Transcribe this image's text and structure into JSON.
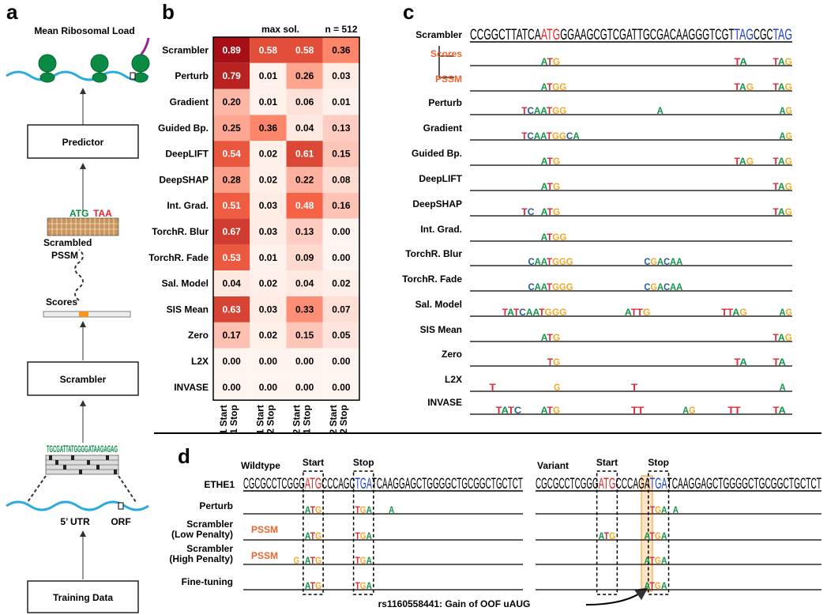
{
  "panel_a": {
    "label": "a",
    "title": "Mean Ribosomal Load",
    "predictor": "Predictor",
    "scrambled_pssm": [
      "Scrambled",
      "PSSM"
    ],
    "scores": "Scores",
    "scrambler": "Scrambler",
    "sequence": "TGCGATTATGGGGATAAGAGAG",
    "utr": "5’ UTR",
    "orf": "ORF",
    "training_data": "Training Data"
  },
  "panel_b": {
    "label": "b",
    "header_left": "max sol.",
    "header_right": "n = 512",
    "columns": [
      [
        "1 Start",
        "1 Stop"
      ],
      [
        "1 Start",
        "2 Stop"
      ],
      [
        "2 Start",
        "1 Stop"
      ],
      [
        "2 Start",
        "2 Stop"
      ]
    ],
    "rows": [
      {
        "name": "Scrambler",
        "values": [
          "0.89",
          "0.58",
          "0.58",
          "0.36"
        ]
      },
      {
        "name": "Perturb",
        "values": [
          "0.79",
          "0.01",
          "0.26",
          "0.03"
        ]
      },
      {
        "name": "Gradient",
        "values": [
          "0.20",
          "0.01",
          "0.06",
          "0.01"
        ]
      },
      {
        "name": "Guided Bp.",
        "values": [
          "0.25",
          "0.36",
          "0.04",
          "0.13"
        ]
      },
      {
        "name": "DeepLIFT",
        "values": [
          "0.54",
          "0.02",
          "0.61",
          "0.15"
        ]
      },
      {
        "name": "DeepSHAP",
        "values": [
          "0.28",
          "0.02",
          "0.22",
          "0.08"
        ]
      },
      {
        "name": "Int. Grad.",
        "values": [
          "0.51",
          "0.03",
          "0.48",
          "0.16"
        ]
      },
      {
        "name": "TorchR. Blur",
        "values": [
          "0.67",
          "0.03",
          "0.13",
          "0.00"
        ]
      },
      {
        "name": "TorchR. Fade",
        "values": [
          "0.53",
          "0.01",
          "0.09",
          "0.00"
        ]
      },
      {
        "name": "Sal. Model",
        "values": [
          "0.04",
          "0.02",
          "0.04",
          "0.02"
        ]
      },
      {
        "name": "SIS Mean",
        "values": [
          "0.63",
          "0.03",
          "0.33",
          "0.07"
        ]
      },
      {
        "name": "Zero",
        "values": [
          "0.17",
          "0.02",
          "0.15",
          "0.05"
        ]
      },
      {
        "name": "L2X",
        "values": [
          "0.00",
          "0.00",
          "0.00",
          "0.00"
        ]
      },
      {
        "name": "INVASE",
        "values": [
          "0.00",
          "0.00",
          "0.00",
          "0.00"
        ]
      }
    ]
  },
  "panel_c": {
    "label": "c",
    "sequence": [
      {
        "text": "CCGGCTTATCA",
        "color": "#000000"
      },
      {
        "text": "ATG",
        "color": "#e8262a"
      },
      {
        "text": "GGAAGCGTCGATTGCGACAAGGGTCGT",
        "color": "#000000"
      },
      {
        "text": "TAG",
        "color": "#1f3fd1"
      },
      {
        "text": "CGC",
        "color": "#000000"
      },
      {
        "text": "TAG",
        "color": "#1f3fd1"
      }
    ],
    "rows": [
      {
        "name": "Scrambler",
        "logo": []
      },
      {
        "name": "Scores",
        "color": "#f0642d",
        "logo": [
          {
            "text": "ATG",
            "start": 11
          },
          {
            "text": "TA",
            "start": 41
          },
          {
            "text": "TAG",
            "start": 47
          }
        ]
      },
      {
        "name": "PSSM",
        "color": "#f0642d",
        "logo": [
          {
            "text": "ATGG",
            "start": 11
          },
          {
            "text": "TAG",
            "start": 41
          },
          {
            "text": "TAG",
            "start": 47
          }
        ]
      },
      {
        "name": "Perturb",
        "logo": [
          {
            "text": "TCAATGG",
            "start": 8
          },
          {
            "text": "A",
            "start": 29
          },
          {
            "text": "AG",
            "start": 48
          }
        ]
      },
      {
        "name": "Gradient",
        "logo": [
          {
            "text": "TCAATGGCA",
            "start": 8
          },
          {
            "text": "AG",
            "start": 48
          }
        ]
      },
      {
        "name": "Guided Bp.",
        "logo": [
          {
            "text": "ATG",
            "start": 11
          },
          {
            "text": "TAG",
            "start": 41
          },
          {
            "text": "TAG",
            "start": 47
          }
        ]
      },
      {
        "name": "DeepLIFT",
        "logo": [
          {
            "text": "ATG",
            "start": 11
          },
          {
            "text": "TAG",
            "start": 47
          }
        ]
      },
      {
        "name": "DeepSHAP",
        "logo": [
          {
            "text": "TC",
            "start": 8
          },
          {
            "text": "ATG",
            "start": 11
          },
          {
            "text": "TAG",
            "start": 47
          }
        ]
      },
      {
        "name": "Int. Grad.",
        "logo": [
          {
            "text": "ATGG",
            "start": 11
          }
        ]
      },
      {
        "name": "TorchR. Blur",
        "logo": [
          {
            "text": "CAATGGG",
            "start": 9
          },
          {
            "text": "CGACAA",
            "start": 27
          }
        ]
      },
      {
        "name": "TorchR. Fade",
        "logo": [
          {
            "text": "CAATGGG",
            "start": 9
          },
          {
            "text": "CGACAA",
            "start": 27
          }
        ]
      },
      {
        "name": "Sal. Model",
        "logo": [
          {
            "text": "TATCAATGGG",
            "start": 5
          },
          {
            "text": "ATTG",
            "start": 24
          },
          {
            "text": "TTAG",
            "start": 39
          },
          {
            "text": "AG",
            "start": 48
          }
        ]
      },
      {
        "name": "SIS Mean",
        "logo": [
          {
            "text": "ATG",
            "start": 11
          },
          {
            "text": "TAG",
            "start": 47
          }
        ]
      },
      {
        "name": "Zero",
        "logo": [
          {
            "text": "TG",
            "start": 12
          },
          {
            "text": "TA",
            "start": 41
          },
          {
            "text": "TA",
            "start": 47
          }
        ]
      },
      {
        "name": "L2X",
        "logo": [
          {
            "text": "T",
            "start": 3
          },
          {
            "text": "G",
            "start": 13
          },
          {
            "text": "T",
            "start": 25
          },
          {
            "text": "A",
            "start": 48
          }
        ]
      },
      {
        "name": "INVASE",
        "logo": [
          {
            "text": "TATC",
            "start": 4
          },
          {
            "text": "ATG",
            "start": 11
          },
          {
            "text": "TT",
            "start": 25
          },
          {
            "text": "AG",
            "start": 33
          },
          {
            "text": "TT",
            "start": 40
          },
          {
            "text": "TA",
            "start": 47
          }
        ]
      }
    ]
  },
  "panel_d": {
    "label": "d",
    "gene": "ETHE1",
    "wildtype": {
      "title": "Wildtype",
      "start": "Start",
      "stop": "Stop",
      "sequence": [
        {
          "text": "CGCGCCTCGGG",
          "color": "#000000"
        },
        {
          "text": "ATG",
          "color": "#e8262a"
        },
        {
          "text": "CCCAGC",
          "color": "#000000"
        },
        {
          "text": "TGA",
          "color": "#1f3fd1"
        },
        {
          "text": "TCAAGGAGCTGGGGCTGCGGCTGCTCT",
          "color": "#000000"
        }
      ],
      "logos": [
        [
          {
            "text": "ATG",
            "start": 11
          },
          {
            "text": "TGA",
            "start": 20
          },
          {
            "text": "A",
            "start": 26
          }
        ],
        [
          {
            "text": "ATG",
            "start": 11
          },
          {
            "text": "TGA",
            "start": 20
          }
        ],
        [
          {
            "text": "G",
            "start": 9
          },
          {
            "text": "ATG",
            "start": 11
          },
          {
            "text": "TGA",
            "start": 20
          }
        ],
        [
          {
            "text": "ATG",
            "start": 11
          },
          {
            "text": "TGA",
            "start": 20
          }
        ]
      ]
    },
    "variant": {
      "title": "Variant",
      "start": "Start",
      "stop": "Stop",
      "sequence": [
        {
          "text": "CGCGCCTCGGG",
          "color": "#000000"
        },
        {
          "text": "ATG",
          "color": "#e8262a"
        },
        {
          "text": "CCCAGA",
          "color": "#000000"
        },
        {
          "text": "TGA",
          "color": "#1f3fd1"
        },
        {
          "text": "TCAAGGAGCTGGGGCTGCGGCTGCTCT",
          "color": "#000000"
        }
      ],
      "logos": [
        [
          {
            "text": "TGA",
            "start": 20
          },
          {
            "text": "A",
            "start": 24
          }
        ],
        [
          {
            "text": "ATG",
            "start": 11
          },
          {
            "text": "ATGA",
            "start": 19
          }
        ],
        [
          {
            "text": "ATGA",
            "start": 19
          }
        ],
        [
          {
            "text": "ATGA",
            "start": 19
          }
        ]
      ]
    },
    "rows": [
      [
        "Perturb"
      ],
      [
        "Scrambler",
        "(Low Penalty)"
      ],
      [
        "Scrambler",
        "(High Penalty)"
      ],
      [
        "Fine-tuning"
      ]
    ],
    "pssm": "PSSM",
    "annotation": "rs1160558441: Gain of OOF uAUG"
  }
}
